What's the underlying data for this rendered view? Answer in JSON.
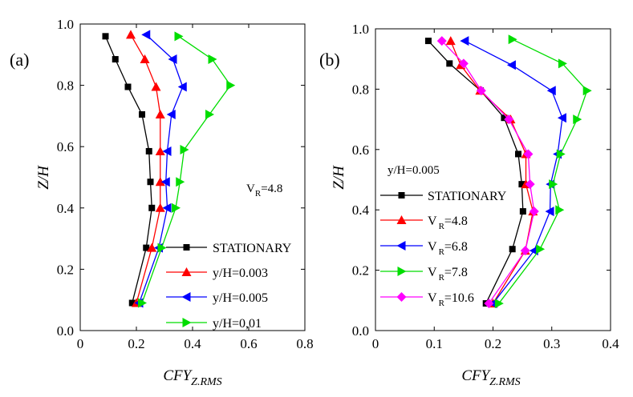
{
  "chart_data": [
    {
      "type": "line",
      "panel_label": "(a)",
      "xlabel_main": "CFY",
      "xlabel_sub": "Z.RMS",
      "ylabel": "Z/H",
      "xlim": [
        0,
        0.8
      ],
      "ylim": [
        0.0,
        1.0
      ],
      "x_ticks": [
        "0",
        "0.2",
        "0.4",
        "0.6",
        "0.8"
      ],
      "x_tick_values": [
        0,
        0.2,
        0.4,
        0.6,
        0.8
      ],
      "y_ticks": [
        "0.0",
        "0.2",
        "0.4",
        "0.6",
        "0.8",
        "1.0"
      ],
      "y_tick_values": [
        0.0,
        0.2,
        0.4,
        0.6,
        0.8,
        1.0
      ],
      "annotation": {
        "main": "V",
        "sub": "R",
        "rest": "=4.8"
      },
      "series": [
        {
          "name": "STATIONARY",
          "color": "#000000",
          "marker": "square",
          "x": [
            0.185,
            0.235,
            0.255,
            0.25,
            0.245,
            0.22,
            0.17,
            0.125,
            0.09
          ],
          "y": [
            0.09,
            0.27,
            0.4,
            0.485,
            0.585,
            0.705,
            0.795,
            0.885,
            0.96
          ]
        },
        {
          "name": "y/H=0.003",
          "color": "#ff0000",
          "marker": "triangle-up",
          "x": [
            0.2,
            0.255,
            0.285,
            0.285,
            0.285,
            0.285,
            0.27,
            0.23,
            0.18
          ],
          "y": [
            0.09,
            0.27,
            0.4,
            0.485,
            0.585,
            0.705,
            0.795,
            0.885,
            0.965
          ]
        },
        {
          "name": "y/H=0.005",
          "color": "#0000ff",
          "marker": "triangle-left",
          "x": [
            0.21,
            0.28,
            0.31,
            0.305,
            0.31,
            0.325,
            0.365,
            0.33,
            0.235
          ],
          "y": [
            0.09,
            0.27,
            0.4,
            0.485,
            0.585,
            0.705,
            0.795,
            0.885,
            0.965
          ]
        },
        {
          "name": "y/H=0,01",
          "color": "#00dd00",
          "marker": "triangle-right",
          "x": [
            0.22,
            0.29,
            0.34,
            0.355,
            0.37,
            0.46,
            0.535,
            0.47,
            0.35
          ],
          "y": [
            0.09,
            0.27,
            0.4,
            0.485,
            0.59,
            0.705,
            0.8,
            0.885,
            0.96
          ]
        }
      ]
    },
    {
      "type": "line",
      "panel_label": "(b)",
      "xlabel_main": "CFY",
      "xlabel_sub": "Z.RMS",
      "ylabel": "Z/H",
      "xlim": [
        0,
        0.4
      ],
      "ylim": [
        0.0,
        1.0
      ],
      "x_ticks": [
        "0",
        "0.1",
        "0.2",
        "0.3",
        "0.4"
      ],
      "x_tick_values": [
        0,
        0.1,
        0.2,
        0.3,
        0.4
      ],
      "y_ticks": [
        "0.0",
        "0.2",
        "0.4",
        "0.6",
        "0.8",
        "1.0"
      ],
      "y_tick_values": [
        0.0,
        0.2,
        0.4,
        0.6,
        0.8,
        1.0
      ],
      "annotation": {
        "main": "y/H=0.005"
      },
      "series": [
        {
          "name": "STATIONARY",
          "color": "#000000",
          "marker": "square",
          "x": [
            0.188,
            0.233,
            0.251,
            0.249,
            0.243,
            0.219,
            0.179,
            0.126,
            0.09
          ],
          "y": [
            0.09,
            0.27,
            0.395,
            0.485,
            0.585,
            0.705,
            0.795,
            0.885,
            0.96
          ]
        },
        {
          "name": "V_R=4.8",
          "color": "#ff0000",
          "marker": "triangle-up",
          "x": [
            0.2,
            0.255,
            0.268,
            0.256,
            0.256,
            0.23,
            0.178,
            0.145,
            0.128
          ],
          "y": [
            0.09,
            0.265,
            0.395,
            0.485,
            0.585,
            0.7,
            0.795,
            0.88,
            0.96
          ]
        },
        {
          "name": "V_R=6.8",
          "color": "#0000ff",
          "marker": "triangle-left",
          "x": [
            0.2,
            0.27,
            0.297,
            0.298,
            0.31,
            0.318,
            0.3,
            0.232,
            0.152
          ],
          "y": [
            0.09,
            0.265,
            0.395,
            0.485,
            0.585,
            0.705,
            0.795,
            0.88,
            0.96
          ]
        },
        {
          "name": "V_R=7.8",
          "color": "#00dd00",
          "marker": "triangle-right",
          "x": [
            0.21,
            0.28,
            0.313,
            0.302,
            0.315,
            0.343,
            0.36,
            0.318,
            0.233
          ],
          "y": [
            0.09,
            0.27,
            0.4,
            0.485,
            0.585,
            0.7,
            0.795,
            0.885,
            0.965
          ]
        },
        {
          "name": "V_R=10.6",
          "color": "#ff00ff",
          "marker": "diamond",
          "x": [
            0.193,
            0.255,
            0.27,
            0.263,
            0.26,
            0.227,
            0.18,
            0.15,
            0.113
          ],
          "y": [
            0.09,
            0.265,
            0.395,
            0.485,
            0.585,
            0.7,
            0.795,
            0.885,
            0.96
          ]
        }
      ]
    }
  ],
  "legend_a": [
    {
      "label": "STATIONARY"
    },
    {
      "label": "y/H=0.003"
    },
    {
      "label": "y/H=0.005"
    },
    {
      "label": "y/H=0,01"
    }
  ],
  "legend_b": [
    {
      "label": "STATIONARY"
    },
    {
      "main": "V",
      "sub": "R",
      "rest": "=4.8"
    },
    {
      "main": "V",
      "sub": "R",
      "rest": "=6.8"
    },
    {
      "main": "V",
      "sub": "R",
      "rest": "=7.8"
    },
    {
      "main": "V",
      "sub": "R",
      "rest": "=10.6"
    }
  ]
}
